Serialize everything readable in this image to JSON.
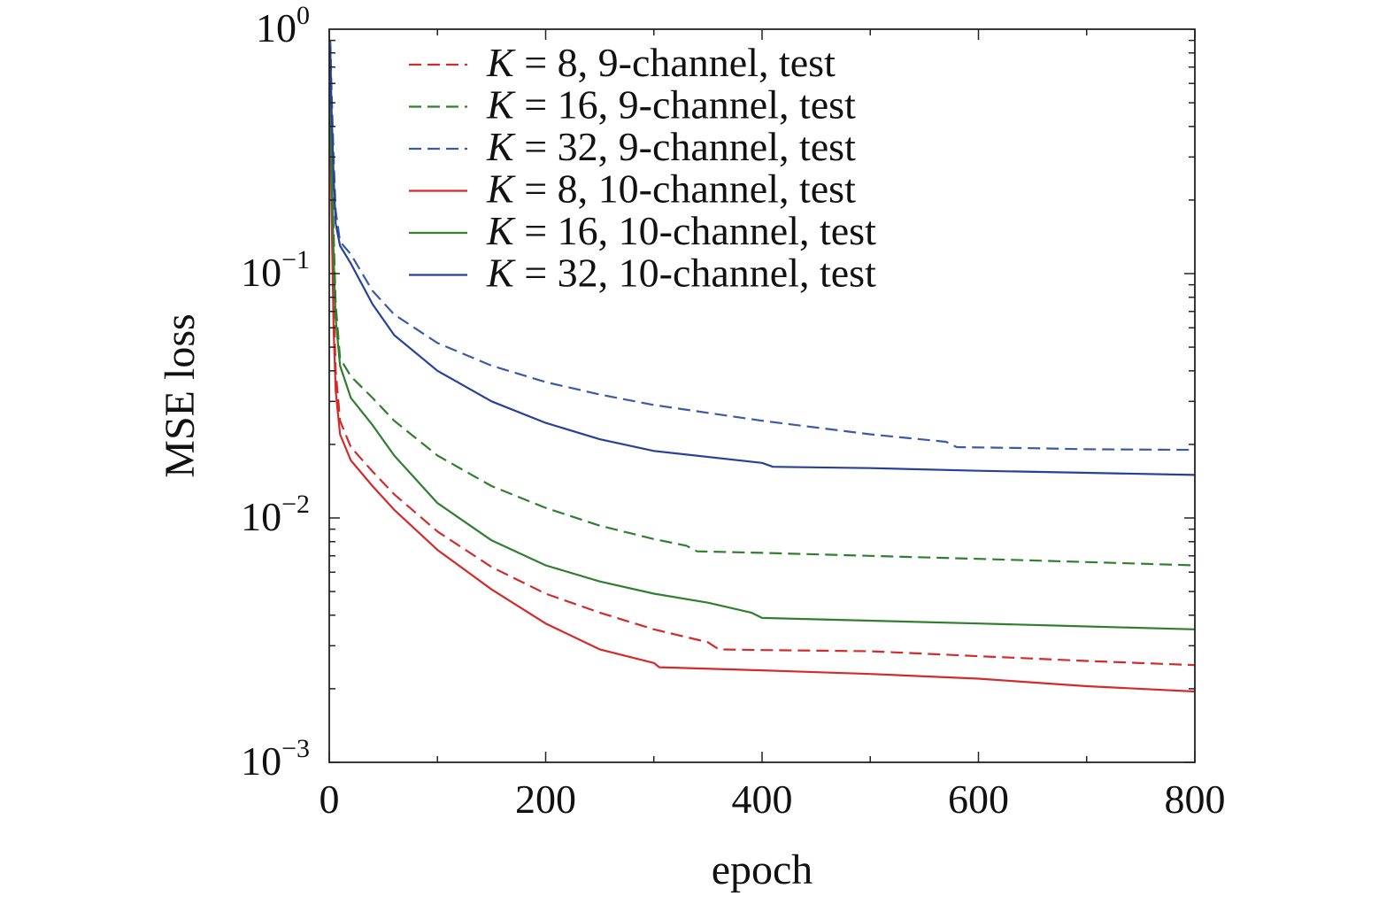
{
  "chart_data": {
    "type": "line",
    "title": "",
    "xlabel": "epoch",
    "ylabel": "MSE loss",
    "xlim": [
      0,
      800
    ],
    "ylim": [
      0.001,
      1
    ],
    "yscale": "log",
    "grid": false,
    "legend_position": "top-center",
    "x_ticks": [
      0,
      200,
      400,
      600,
      800
    ],
    "x_tick_labels": [
      "0",
      "200",
      "400",
      "600",
      "800"
    ],
    "y_ticks": [
      {
        "value": 1,
        "base": "10",
        "exp": "0"
      },
      {
        "value": 0.1,
        "base": "10",
        "exp": "−1"
      },
      {
        "value": 0.01,
        "base": "10",
        "exp": "−2"
      },
      {
        "value": 0.001,
        "base": "10",
        "exp": "−3"
      }
    ],
    "series": [
      {
        "name": "K = 8, 9-channel, test",
        "legend_k": "K",
        "legend_rest": " = 8, 9-channel, test",
        "color": "#d42a2a",
        "dash": "dashed",
        "x": [
          1,
          2,
          4,
          6,
          10,
          20,
          40,
          60,
          100,
          150,
          200,
          250,
          300,
          350,
          360,
          400,
          500,
          600,
          700,
          800
        ],
        "y": [
          0.6,
          0.3,
          0.08,
          0.04,
          0.025,
          0.0195,
          0.0155,
          0.0125,
          0.0088,
          0.0063,
          0.0049,
          0.0041,
          0.0035,
          0.0031,
          0.0029,
          0.00288,
          0.00285,
          0.00272,
          0.0026,
          0.0025
        ]
      },
      {
        "name": "K = 16, 9-channel, test",
        "legend_k": "K",
        "legend_rest": " = 16, 9-channel, test",
        "color": "#2f7f2f",
        "dash": "dashed",
        "x": [
          1,
          2,
          4,
          6,
          10,
          20,
          40,
          60,
          100,
          150,
          200,
          250,
          300,
          330,
          340,
          400,
          500,
          600,
          700,
          800
        ],
        "y": [
          0.7,
          0.4,
          0.15,
          0.075,
          0.045,
          0.038,
          0.031,
          0.025,
          0.018,
          0.0135,
          0.011,
          0.0093,
          0.0082,
          0.0077,
          0.0073,
          0.0072,
          0.007,
          0.0068,
          0.0066,
          0.0064
        ]
      },
      {
        "name": "K = 32, 9-channel, test",
        "legend_k": "K",
        "legend_rest": " = 32, 9-channel, test",
        "color": "#3a5aa6",
        "dash": "dashed",
        "x": [
          1,
          2,
          4,
          6,
          10,
          20,
          40,
          60,
          100,
          150,
          200,
          250,
          300,
          400,
          500,
          570,
          580,
          650,
          700,
          800
        ],
        "y": [
          0.9,
          0.6,
          0.3,
          0.18,
          0.135,
          0.12,
          0.085,
          0.068,
          0.052,
          0.042,
          0.036,
          0.032,
          0.029,
          0.025,
          0.022,
          0.0205,
          0.0195,
          0.0193,
          0.0191,
          0.019
        ]
      },
      {
        "name": "K = 8, 10-channel, test",
        "legend_k": "K",
        "legend_rest": " = 8, 10-channel, test",
        "color": "#d42a2a",
        "dash": "solid",
        "x": [
          1,
          2,
          4,
          6,
          10,
          20,
          40,
          60,
          100,
          150,
          200,
          250,
          300,
          305,
          400,
          500,
          600,
          700,
          800
        ],
        "y": [
          0.5,
          0.2,
          0.06,
          0.033,
          0.022,
          0.0172,
          0.0135,
          0.0108,
          0.0074,
          0.0051,
          0.0037,
          0.0029,
          0.00255,
          0.00245,
          0.00238,
          0.0023,
          0.0022,
          0.00205,
          0.00195
        ]
      },
      {
        "name": "K = 16, 10-channel, test",
        "legend_k": "K",
        "legend_rest": " = 16, 10-channel, test",
        "color": "#2f7f2f",
        "dash": "solid",
        "x": [
          1,
          2,
          4,
          6,
          10,
          20,
          40,
          60,
          100,
          150,
          200,
          250,
          300,
          350,
          390,
          400,
          500,
          600,
          700,
          800
        ],
        "y": [
          0.6,
          0.3,
          0.12,
          0.065,
          0.042,
          0.031,
          0.024,
          0.018,
          0.0115,
          0.0081,
          0.0064,
          0.0055,
          0.0049,
          0.0045,
          0.0041,
          0.0039,
          0.0038,
          0.0037,
          0.0036,
          0.0035
        ]
      },
      {
        "name": "K = 32, 10-channel, test",
        "legend_k": "K",
        "legend_rest": " = 32, 10-channel, test",
        "color": "#27409a",
        "dash": "solid",
        "x": [
          1,
          2,
          4,
          6,
          10,
          20,
          40,
          60,
          100,
          150,
          200,
          250,
          300,
          400,
          410,
          500,
          600,
          700,
          800
        ],
        "y": [
          0.85,
          0.5,
          0.25,
          0.16,
          0.13,
          0.11,
          0.075,
          0.056,
          0.04,
          0.03,
          0.0245,
          0.021,
          0.0188,
          0.0168,
          0.0162,
          0.016,
          0.0156,
          0.0153,
          0.015
        ]
      }
    ]
  }
}
